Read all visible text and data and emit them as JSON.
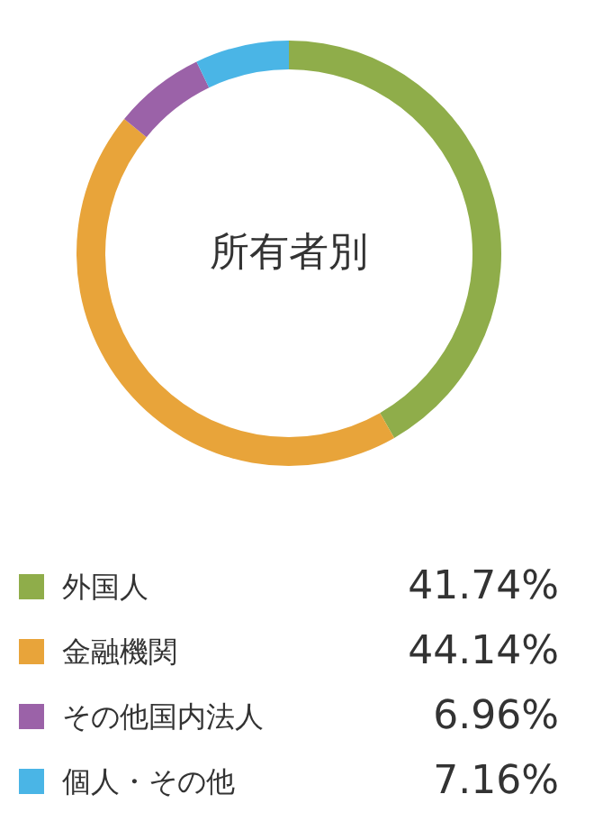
{
  "chart_data": {
    "type": "donut",
    "title": "所有者別",
    "categories": [
      "外国人",
      "金融機関",
      "その他国内法人",
      "個人・その他"
    ],
    "values": [
      41.74,
      44.14,
      6.96,
      7.16
    ],
    "colors": [
      "#8fad4a",
      "#e8a43a",
      "#9b62a8",
      "#4ab5e6"
    ],
    "value_labels": [
      "41.74%",
      "44.14%",
      "6.96%",
      "7.16%"
    ],
    "legend": "bottom"
  }
}
